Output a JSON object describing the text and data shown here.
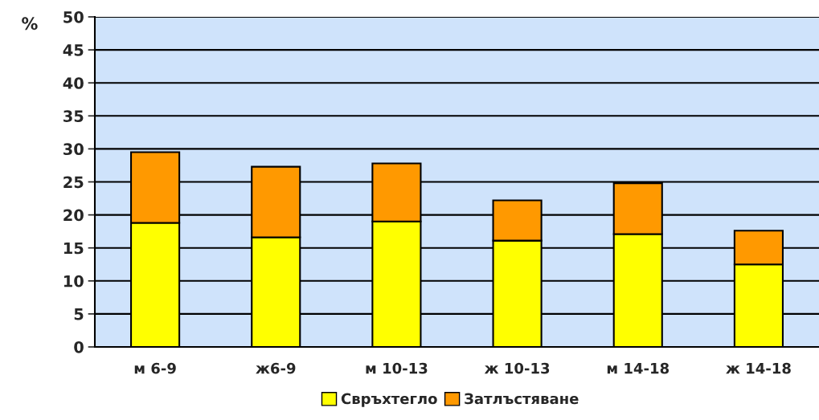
{
  "chart_data": {
    "type": "bar",
    "stacked": true,
    "ylabel": "%",
    "categories": [
      "м 6-9",
      "ж6-9",
      "м 10-13",
      "ж 10-13",
      "м 14-18",
      "ж 14-18"
    ],
    "series": [
      {
        "name": "Свръхтегло",
        "color": "#ffff00",
        "values": [
          18.8,
          16.6,
          19.0,
          16.1,
          17.1,
          12.5
        ]
      },
      {
        "name": "Затлъстяване",
        "color": "#ff9900",
        "values": [
          10.7,
          10.7,
          8.8,
          6.1,
          7.7,
          5.1
        ]
      }
    ],
    "ylim": [
      0,
      50
    ],
    "yticks": [
      0,
      5,
      10,
      15,
      20,
      25,
      30,
      35,
      40,
      45,
      50
    ],
    "grid": "y",
    "legend": "bottom"
  }
}
